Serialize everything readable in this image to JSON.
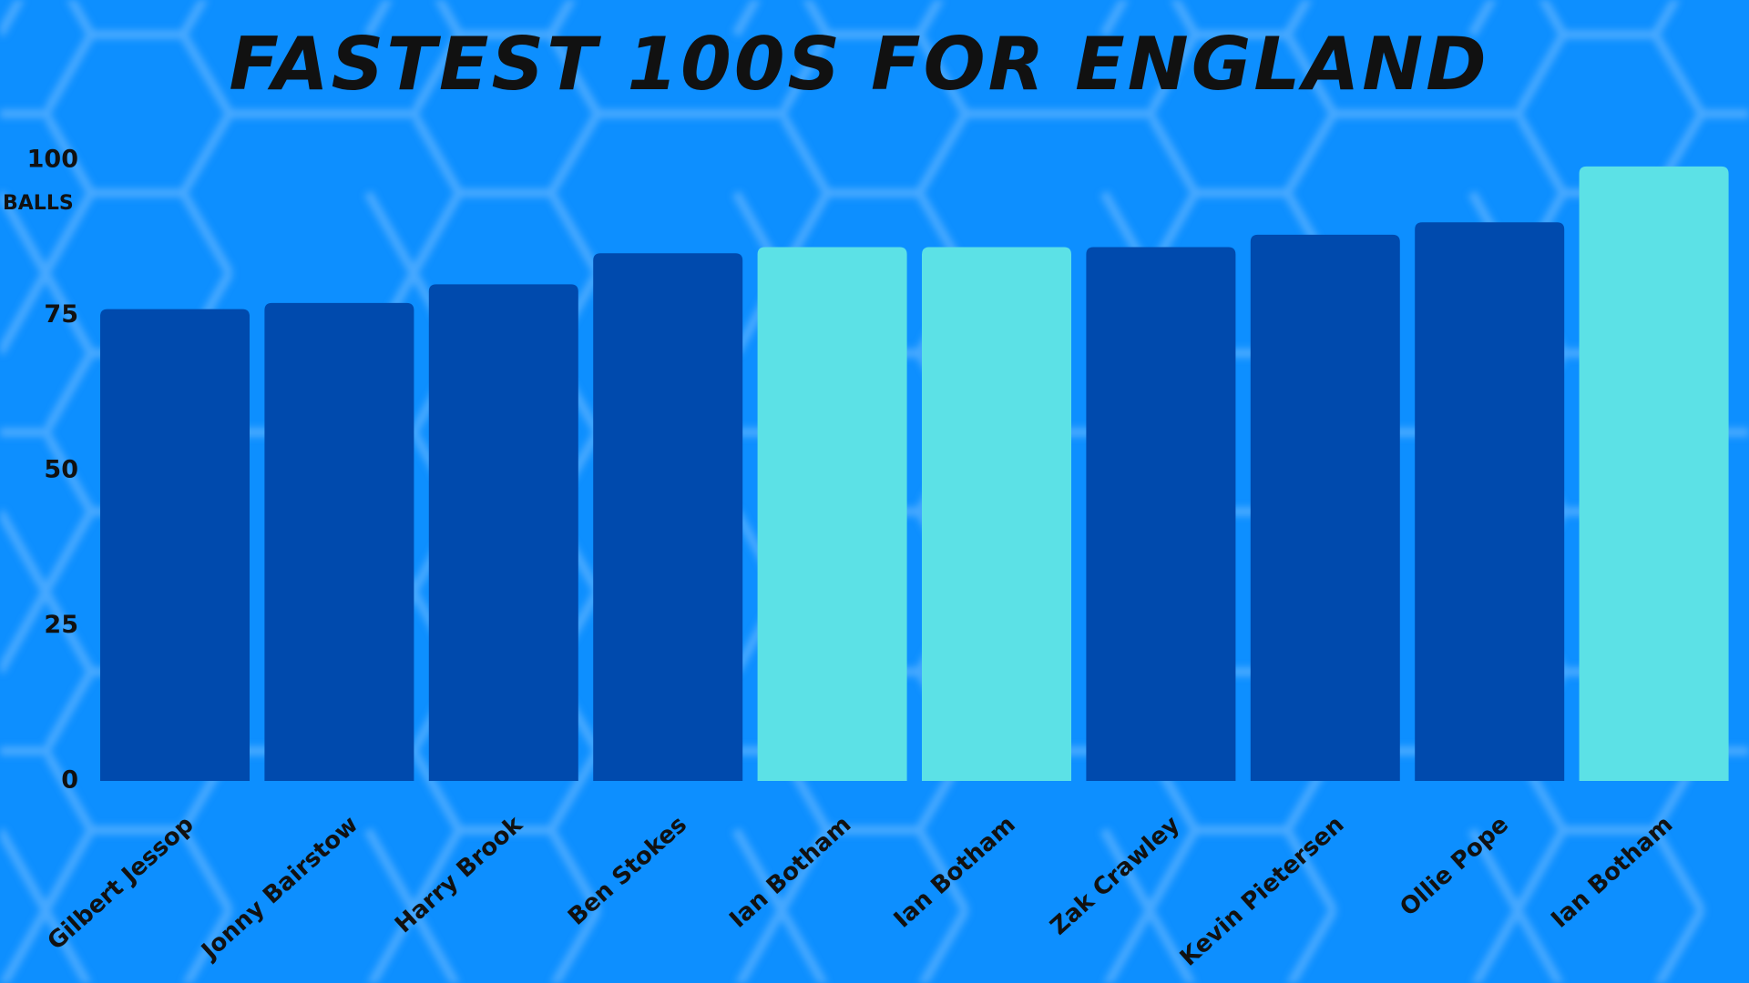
{
  "chart_data": {
    "type": "bar",
    "title": "FASTEST 100S FOR ENGLAND",
    "y_label": "BALLS",
    "categories": [
      "Gilbert Jessop",
      "Jonny Bairstow",
      "Harry Brook",
      "Ben Stokes",
      "Ian Botham",
      "Ian Botham",
      "Zak Crawley",
      "Kevin Pietersen",
      "Ollie Pope",
      "Ian Botham"
    ],
    "values": [
      76,
      77,
      80,
      85,
      86,
      86,
      86,
      88,
      90,
      99
    ],
    "colors": [
      "#004aad",
      "#004aad",
      "#004aad",
      "#004aad",
      "#5ce1e6",
      "#5ce1e6",
      "#004aad",
      "#004aad",
      "#004aad",
      "#5ce1e6"
    ],
    "ylim": [
      0,
      100
    ],
    "yticks": [
      0,
      25,
      50,
      75,
      100
    ],
    "grid": false
  }
}
